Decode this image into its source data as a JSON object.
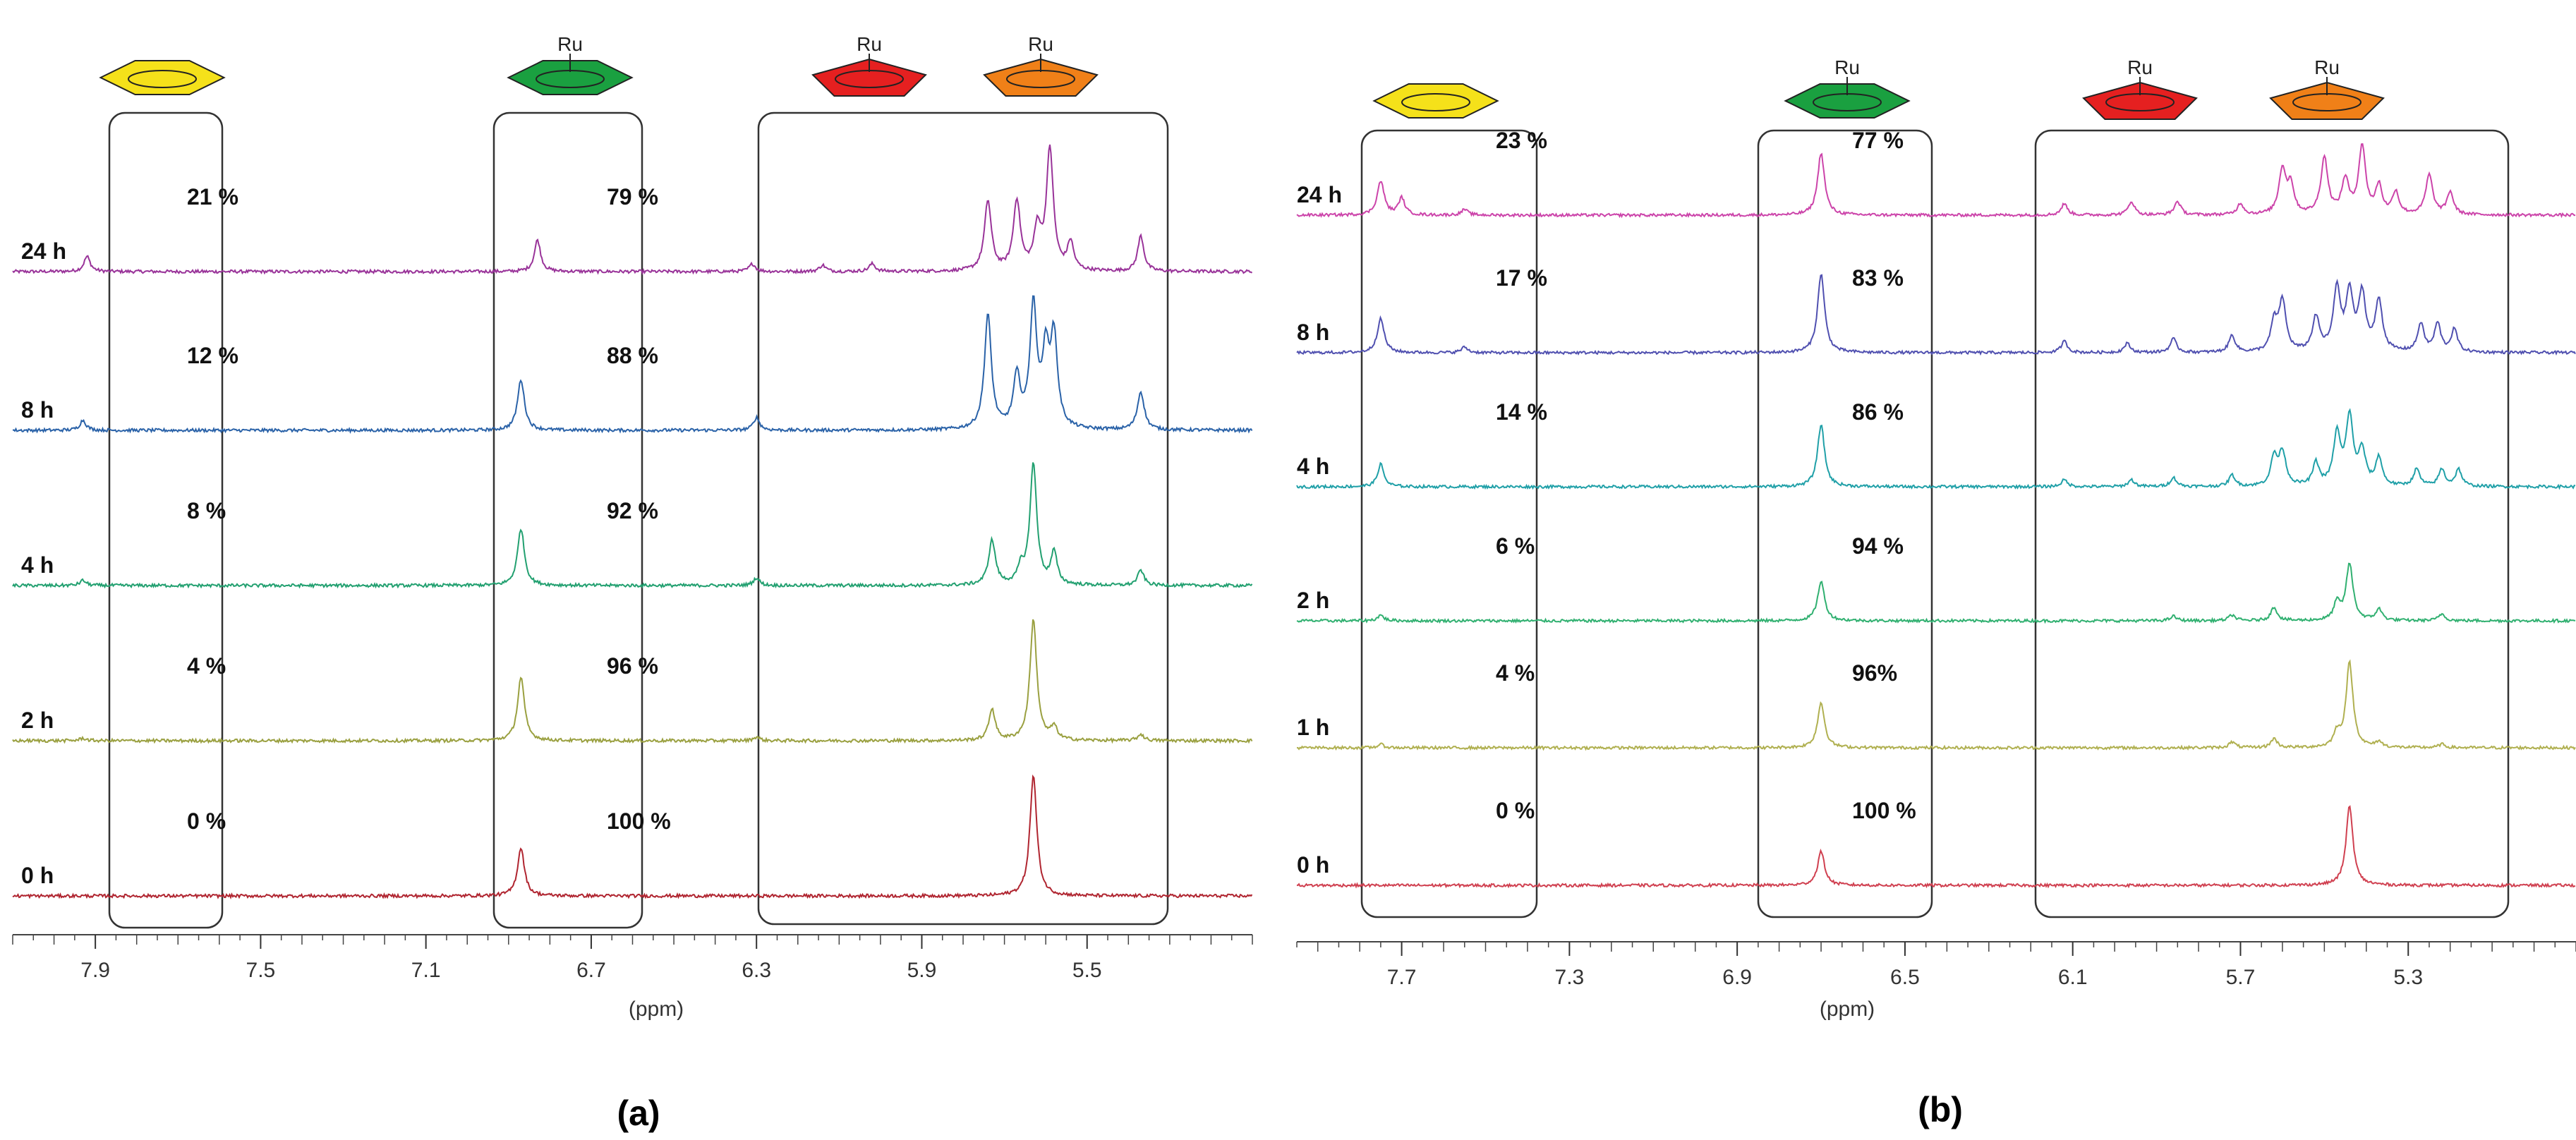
{
  "panels": [
    {
      "id": "a",
      "panel_label": "(a)",
      "axis_label": "(ppm)",
      "ticks": [
        "7.9",
        "7.5",
        "7.1",
        "6.7",
        "6.3",
        "5.9",
        "5.5"
      ],
      "icons": [
        {
          "shape": "hexagon",
          "color": "#f5e11a",
          "ru": false
        },
        {
          "shape": "hexagon",
          "color": "#1aa040",
          "ru": true,
          "ru_label": "Ru"
        },
        {
          "shape": "pentagon",
          "color": "#e52020",
          "ru": true,
          "ru_label": "Ru"
        },
        {
          "shape": "pentagon",
          "color": "#f08018",
          "ru": true,
          "ru_label": "Ru"
        }
      ],
      "rows": [
        {
          "label": "24 h",
          "color": "#993399",
          "pct_left": "21 %",
          "pct_right": "79 %"
        },
        {
          "label": "8 h",
          "color": "#2a62a8",
          "pct_left": "12 %",
          "pct_right": "88 %"
        },
        {
          "label": "4 h",
          "color": "#22a070",
          "pct_left": "8 %",
          "pct_right": "92 %"
        },
        {
          "label": "2 h",
          "color": "#9aa040",
          "pct_left": "4 %",
          "pct_right": "96 %"
        },
        {
          "label": "0 h",
          "color": "#b02530",
          "pct_left": "0 %",
          "pct_right": "100 %"
        }
      ]
    },
    {
      "id": "b",
      "panel_label": "(b)",
      "axis_label": "(ppm)",
      "ticks": [
        "7.7",
        "7.3",
        "6.9",
        "6.5",
        "6.1",
        "5.7",
        "5.3"
      ],
      "icons": [
        {
          "shape": "hexagon",
          "color": "#f5e11a",
          "ru": false
        },
        {
          "shape": "hexagon",
          "color": "#1aa040",
          "ru": true,
          "ru_label": "Ru"
        },
        {
          "shape": "pentagon",
          "color": "#e52020",
          "ru": true,
          "ru_label": "Ru"
        },
        {
          "shape": "pentagon",
          "color": "#f08018",
          "ru": true,
          "ru_label": "Ru"
        }
      ],
      "rows": [
        {
          "label": "24 h",
          "color": "#cc44aa",
          "pct_left": "23 %",
          "pct_right": "77 %"
        },
        {
          "label": "8 h",
          "color": "#5050b0",
          "pct_left": "17 %",
          "pct_right": "83 %"
        },
        {
          "label": "4 h",
          "color": "#20a0a8",
          "pct_left": "14 %",
          "pct_right": "86 %"
        },
        {
          "label": "2 h",
          "color": "#30b070",
          "pct_left": "6 %",
          "pct_right": "94 %"
        },
        {
          "label": "1 h",
          "color": "#b0b050",
          "pct_left": "4 %",
          "pct_right": "96%"
        },
        {
          "label": "0 h",
          "color": "#d04050",
          "pct_left": "0 %",
          "pct_right": "100 %"
        }
      ]
    }
  ],
  "chart_data": [
    {
      "type": "line",
      "title": "",
      "xlabel": "(ppm)",
      "ylabel": "",
      "x_ticks": [
        7.9,
        7.5,
        7.1,
        6.7,
        6.3,
        5.9,
        5.5
      ],
      "x_reversed": true,
      "series": [
        {
          "name": "24 h",
          "peaks": [
            {
              "x": 7.92,
              "h": 0.12
            },
            {
              "x": 6.83,
              "h": 0.25
            },
            {
              "x": 6.31,
              "h": 0.06
            },
            {
              "x": 6.14,
              "h": 0.05
            },
            {
              "x": 6.02,
              "h": 0.06
            },
            {
              "x": 5.74,
              "h": 0.55
            },
            {
              "x": 5.67,
              "h": 0.55
            },
            {
              "x": 5.62,
              "h": 0.32
            },
            {
              "x": 5.59,
              "h": 0.95
            },
            {
              "x": 5.54,
              "h": 0.22
            },
            {
              "x": 5.37,
              "h": 0.28
            }
          ],
          "pct_free_arene": 21,
          "pct_complex": 79
        },
        {
          "name": "8 h",
          "peaks": [
            {
              "x": 7.93,
              "h": 0.08
            },
            {
              "x": 6.87,
              "h": 0.4
            },
            {
              "x": 6.3,
              "h": 0.1
            },
            {
              "x": 5.74,
              "h": 0.9
            },
            {
              "x": 5.67,
              "h": 0.4
            },
            {
              "x": 5.63,
              "h": 0.95
            },
            {
              "x": 5.6,
              "h": 0.55
            },
            {
              "x": 5.58,
              "h": 0.7
            },
            {
              "x": 5.37,
              "h": 0.3
            }
          ],
          "pct_free_arene": 12,
          "pct_complex": 88
        },
        {
          "name": "4 h",
          "peaks": [
            {
              "x": 7.93,
              "h": 0.04
            },
            {
              "x": 6.87,
              "h": 0.45
            },
            {
              "x": 6.3,
              "h": 0.06
            },
            {
              "x": 5.73,
              "h": 0.35
            },
            {
              "x": 5.66,
              "h": 0.12
            },
            {
              "x": 5.63,
              "h": 0.95
            },
            {
              "x": 5.58,
              "h": 0.25
            },
            {
              "x": 5.37,
              "h": 0.12
            }
          ],
          "pct_free_arene": 8,
          "pct_complex": 92
        },
        {
          "name": "2 h",
          "peaks": [
            {
              "x": 7.93,
              "h": 0.02
            },
            {
              "x": 6.87,
              "h": 0.5
            },
            {
              "x": 6.3,
              "h": 0.03
            },
            {
              "x": 5.73,
              "h": 0.25
            },
            {
              "x": 5.63,
              "h": 0.95
            },
            {
              "x": 5.58,
              "h": 0.1
            },
            {
              "x": 5.37,
              "h": 0.05
            }
          ],
          "pct_free_arene": 4,
          "pct_complex": 96
        },
        {
          "name": "0 h",
          "peaks": [
            {
              "x": 6.87,
              "h": 0.38
            },
            {
              "x": 5.63,
              "h": 0.95
            }
          ],
          "pct_free_arene": 0,
          "pct_complex": 100
        }
      ]
    },
    {
      "type": "line",
      "title": "",
      "xlabel": "(ppm)",
      "ylabel": "",
      "x_ticks": [
        7.7,
        7.3,
        6.9,
        6.5,
        6.1,
        5.7,
        5.3
      ],
      "x_reversed": true,
      "series": [
        {
          "name": "24 h",
          "peaks": [
            {
              "x": 7.75,
              "h": 0.3
            },
            {
              "x": 7.7,
              "h": 0.15
            },
            {
              "x": 7.55,
              "h": 0.05
            },
            {
              "x": 6.7,
              "h": 0.55
            },
            {
              "x": 6.12,
              "h": 0.1
            },
            {
              "x": 5.96,
              "h": 0.12
            },
            {
              "x": 5.85,
              "h": 0.12
            },
            {
              "x": 5.7,
              "h": 0.1
            },
            {
              "x": 5.6,
              "h": 0.4
            },
            {
              "x": 5.58,
              "h": 0.25
            },
            {
              "x": 5.5,
              "h": 0.5
            },
            {
              "x": 5.45,
              "h": 0.3
            },
            {
              "x": 5.41,
              "h": 0.6
            },
            {
              "x": 5.37,
              "h": 0.25
            },
            {
              "x": 5.33,
              "h": 0.2
            },
            {
              "x": 5.25,
              "h": 0.35
            },
            {
              "x": 5.2,
              "h": 0.2
            }
          ],
          "pct_free_arene": 23,
          "pct_complex": 77
        },
        {
          "name": "8 h",
          "peaks": [
            {
              "x": 7.75,
              "h": 0.3
            },
            {
              "x": 7.55,
              "h": 0.05
            },
            {
              "x": 6.7,
              "h": 0.7
            },
            {
              "x": 6.12,
              "h": 0.1
            },
            {
              "x": 5.97,
              "h": 0.08
            },
            {
              "x": 5.86,
              "h": 0.12
            },
            {
              "x": 5.72,
              "h": 0.15
            },
            {
              "x": 5.62,
              "h": 0.25
            },
            {
              "x": 5.6,
              "h": 0.45
            },
            {
              "x": 5.52,
              "h": 0.3
            },
            {
              "x": 5.47,
              "h": 0.55
            },
            {
              "x": 5.44,
              "h": 0.5
            },
            {
              "x": 5.41,
              "h": 0.5
            },
            {
              "x": 5.37,
              "h": 0.45
            },
            {
              "x": 5.27,
              "h": 0.25
            },
            {
              "x": 5.23,
              "h": 0.25
            },
            {
              "x": 5.19,
              "h": 0.2
            }
          ],
          "pct_free_arene": 17,
          "pct_complex": 83
        },
        {
          "name": "4 h",
          "peaks": [
            {
              "x": 7.75,
              "h": 0.2
            },
            {
              "x": 6.7,
              "h": 0.55
            },
            {
              "x": 6.12,
              "h": 0.06
            },
            {
              "x": 5.96,
              "h": 0.06
            },
            {
              "x": 5.86,
              "h": 0.08
            },
            {
              "x": 5.72,
              "h": 0.1
            },
            {
              "x": 5.62,
              "h": 0.25
            },
            {
              "x": 5.6,
              "h": 0.3
            },
            {
              "x": 5.52,
              "h": 0.2
            },
            {
              "x": 5.47,
              "h": 0.45
            },
            {
              "x": 5.44,
              "h": 0.6
            },
            {
              "x": 5.41,
              "h": 0.3
            },
            {
              "x": 5.37,
              "h": 0.25
            },
            {
              "x": 5.28,
              "h": 0.15
            },
            {
              "x": 5.22,
              "h": 0.15
            },
            {
              "x": 5.18,
              "h": 0.15
            }
          ],
          "pct_free_arene": 14,
          "pct_complex": 86
        },
        {
          "name": "2 h",
          "peaks": [
            {
              "x": 7.75,
              "h": 0.05
            },
            {
              "x": 6.7,
              "h": 0.35
            },
            {
              "x": 5.86,
              "h": 0.04
            },
            {
              "x": 5.72,
              "h": 0.05
            },
            {
              "x": 5.62,
              "h": 0.12
            },
            {
              "x": 5.47,
              "h": 0.15
            },
            {
              "x": 5.44,
              "h": 0.5
            },
            {
              "x": 5.37,
              "h": 0.1
            },
            {
              "x": 5.22,
              "h": 0.06
            }
          ],
          "pct_free_arene": 6,
          "pct_complex": 94
        },
        {
          "name": "1 h",
          "peaks": [
            {
              "x": 7.75,
              "h": 0.03
            },
            {
              "x": 6.7,
              "h": 0.4
            },
            {
              "x": 5.72,
              "h": 0.05
            },
            {
              "x": 5.62,
              "h": 0.08
            },
            {
              "x": 5.47,
              "h": 0.12
            },
            {
              "x": 5.44,
              "h": 0.75
            },
            {
              "x": 5.37,
              "h": 0.05
            },
            {
              "x": 5.22,
              "h": 0.03
            }
          ],
          "pct_free_arene": 4,
          "pct_complex": 96
        },
        {
          "name": "0 h",
          "peaks": [
            {
              "x": 6.7,
              "h": 0.3
            },
            {
              "x": 5.44,
              "h": 0.7
            }
          ],
          "pct_free_arene": 0,
          "pct_complex": 100
        }
      ]
    }
  ]
}
